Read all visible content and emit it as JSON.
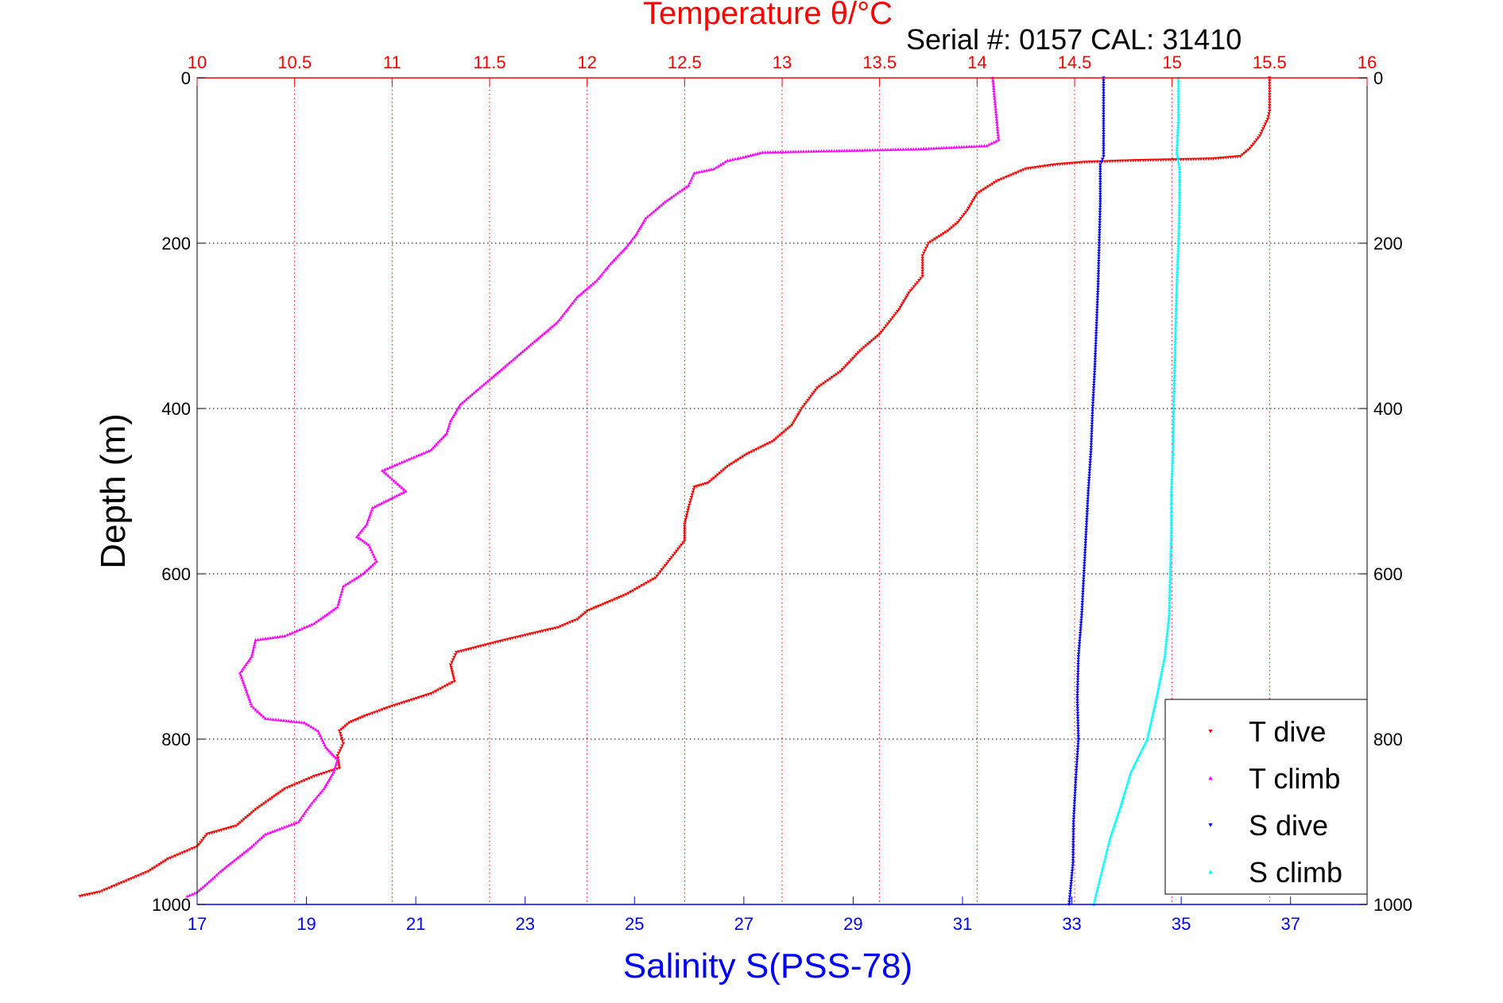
{
  "chart_data": {
    "type": "scatter",
    "title": "Temperature θ/°C",
    "subtitle": "Serial #: 0157  CAL: 31410",
    "xlabel": "Salinity S(PSS-78)",
    "ylabel": "Depth (m)",
    "temperature_axis": {
      "lim": [
        10,
        16
      ],
      "ticks": [
        "10",
        "10.5",
        "11",
        "11.5",
        "12",
        "12.5",
        "13",
        "13.5",
        "14",
        "14.5",
        "15",
        "15.5",
        "16"
      ],
      "color": "#ff0000",
      "grid": true
    },
    "salinity_axis": {
      "lim": [
        17,
        38.4
      ],
      "ticks": [
        "17",
        "19",
        "21",
        "23",
        "25",
        "27",
        "29",
        "31",
        "33",
        "35",
        "37"
      ],
      "color": "#0000ff"
    },
    "depth_axis": {
      "lim": [
        0,
        1000
      ],
      "reversed": true,
      "ticks": [
        "0",
        "200",
        "400",
        "600",
        "800",
        "1000"
      ],
      "grid": true
    },
    "legend": {
      "placement": "bottom-right"
    },
    "series": [
      {
        "name": "T dive",
        "axis": "temperature",
        "color": "#ff0000",
        "marker": "triangle-down",
        "points": [
          [
            15.5,
            0
          ],
          [
            15.5,
            20
          ],
          [
            15.5,
            40
          ],
          [
            15.49,
            50
          ],
          [
            15.45,
            70
          ],
          [
            15.4,
            85
          ],
          [
            15.35,
            95
          ],
          [
            15.2,
            98
          ],
          [
            14.8,
            100
          ],
          [
            14.55,
            102
          ],
          [
            14.4,
            105
          ],
          [
            14.25,
            110
          ],
          [
            14.1,
            125
          ],
          [
            14.0,
            140
          ],
          [
            13.95,
            160
          ],
          [
            13.9,
            175
          ],
          [
            13.85,
            185
          ],
          [
            13.75,
            200
          ],
          [
            13.72,
            215
          ],
          [
            13.72,
            240
          ],
          [
            13.65,
            260
          ],
          [
            13.6,
            280
          ],
          [
            13.5,
            310
          ],
          [
            13.4,
            330
          ],
          [
            13.3,
            355
          ],
          [
            13.18,
            375
          ],
          [
            13.1,
            400
          ],
          [
            13.05,
            420
          ],
          [
            12.95,
            440
          ],
          [
            12.82,
            455
          ],
          [
            12.72,
            470
          ],
          [
            12.62,
            490
          ],
          [
            12.55,
            495
          ],
          [
            12.52,
            520
          ],
          [
            12.5,
            540
          ],
          [
            12.5,
            560
          ],
          [
            12.45,
            575
          ],
          [
            12.4,
            590
          ],
          [
            12.35,
            605
          ],
          [
            12.2,
            625
          ],
          [
            12.0,
            645
          ],
          [
            11.95,
            655
          ],
          [
            11.85,
            665
          ],
          [
            11.58,
            680
          ],
          [
            11.33,
            695
          ],
          [
            11.3,
            710
          ],
          [
            11.32,
            730
          ],
          [
            11.2,
            745
          ],
          [
            11.0,
            760
          ],
          [
            10.86,
            772
          ],
          [
            10.78,
            780
          ],
          [
            10.73,
            790
          ],
          [
            10.75,
            805
          ],
          [
            10.72,
            820
          ],
          [
            10.73,
            835
          ],
          [
            10.6,
            845
          ],
          [
            10.45,
            860
          ],
          [
            10.3,
            885
          ],
          [
            10.2,
            905
          ],
          [
            10.05,
            915
          ],
          [
            10.0,
            930
          ],
          [
            9.85,
            945
          ],
          [
            9.75,
            960
          ],
          [
            9.6,
            975
          ],
          [
            9.5,
            985
          ],
          [
            9.4,
            990
          ]
        ]
      },
      {
        "name": "T climb",
        "axis": "temperature",
        "color": "#ff00ff",
        "marker": "triangle-up",
        "points": [
          [
            14.08,
            0
          ],
          [
            14.09,
            25
          ],
          [
            14.1,
            50
          ],
          [
            14.11,
            75
          ],
          [
            14.05,
            82
          ],
          [
            13.7,
            86
          ],
          [
            12.9,
            90
          ],
          [
            12.8,
            96
          ],
          [
            12.72,
            100
          ],
          [
            12.65,
            110
          ],
          [
            12.55,
            115
          ],
          [
            12.52,
            130
          ],
          [
            12.4,
            150
          ],
          [
            12.3,
            170
          ],
          [
            12.25,
            190
          ],
          [
            12.2,
            205
          ],
          [
            12.12,
            225
          ],
          [
            12.05,
            245
          ],
          [
            11.95,
            265
          ],
          [
            11.9,
            280
          ],
          [
            11.85,
            295
          ],
          [
            11.75,
            315
          ],
          [
            11.65,
            335
          ],
          [
            11.55,
            355
          ],
          [
            11.45,
            375
          ],
          [
            11.35,
            395
          ],
          [
            11.3,
            415
          ],
          [
            11.28,
            430
          ],
          [
            11.2,
            450
          ],
          [
            11.05,
            465
          ],
          [
            10.95,
            475
          ],
          [
            11.07,
            500
          ],
          [
            10.9,
            520
          ],
          [
            10.87,
            540
          ],
          [
            10.82,
            555
          ],
          [
            10.88,
            565
          ],
          [
            10.92,
            585
          ],
          [
            10.85,
            600
          ],
          [
            10.75,
            615
          ],
          [
            10.72,
            640
          ],
          [
            10.6,
            660
          ],
          [
            10.45,
            675
          ],
          [
            10.3,
            680
          ],
          [
            10.28,
            700
          ],
          [
            10.22,
            720
          ],
          [
            10.25,
            740
          ],
          [
            10.28,
            760
          ],
          [
            10.35,
            775
          ],
          [
            10.55,
            780
          ],
          [
            10.62,
            790
          ],
          [
            10.66,
            810
          ],
          [
            10.72,
            825
          ],
          [
            10.7,
            840
          ],
          [
            10.65,
            860
          ],
          [
            10.58,
            880
          ],
          [
            10.52,
            900
          ],
          [
            10.35,
            915
          ],
          [
            10.28,
            930
          ],
          [
            10.2,
            945
          ],
          [
            10.12,
            960
          ],
          [
            10.05,
            975
          ],
          [
            10.0,
            985
          ],
          [
            9.95,
            990
          ]
        ]
      },
      {
        "name": "S dive",
        "axis": "salinity",
        "color": "#0000ff",
        "marker": "triangle-down",
        "points": [
          [
            33.58,
            0
          ],
          [
            33.58,
            50
          ],
          [
            33.58,
            95
          ],
          [
            33.52,
            105
          ],
          [
            33.52,
            150
          ],
          [
            33.5,
            200
          ],
          [
            33.48,
            250
          ],
          [
            33.45,
            300
          ],
          [
            33.42,
            350
          ],
          [
            33.38,
            400
          ],
          [
            33.35,
            450
          ],
          [
            33.3,
            500
          ],
          [
            33.26,
            550
          ],
          [
            33.22,
            600
          ],
          [
            33.18,
            650
          ],
          [
            33.12,
            700
          ],
          [
            33.1,
            750
          ],
          [
            33.12,
            800
          ],
          [
            33.07,
            850
          ],
          [
            33.03,
            900
          ],
          [
            33.02,
            950
          ],
          [
            32.95,
            1000
          ]
        ]
      },
      {
        "name": "S climb",
        "axis": "salinity",
        "color": "#00ffff",
        "marker": "triangle-up",
        "points": [
          [
            34.95,
            0
          ],
          [
            34.95,
            50
          ],
          [
            34.92,
            90
          ],
          [
            34.97,
            110
          ],
          [
            34.97,
            150
          ],
          [
            34.95,
            200
          ],
          [
            34.92,
            250
          ],
          [
            34.9,
            300
          ],
          [
            34.88,
            350
          ],
          [
            34.86,
            400
          ],
          [
            34.85,
            450
          ],
          [
            34.82,
            500
          ],
          [
            34.82,
            550
          ],
          [
            34.8,
            600
          ],
          [
            34.78,
            650
          ],
          [
            34.7,
            700
          ],
          [
            34.55,
            750
          ],
          [
            34.38,
            800
          ],
          [
            34.08,
            840
          ],
          [
            33.9,
            880
          ],
          [
            33.7,
            920
          ],
          [
            33.55,
            960
          ],
          [
            33.4,
            1000
          ]
        ]
      }
    ]
  }
}
